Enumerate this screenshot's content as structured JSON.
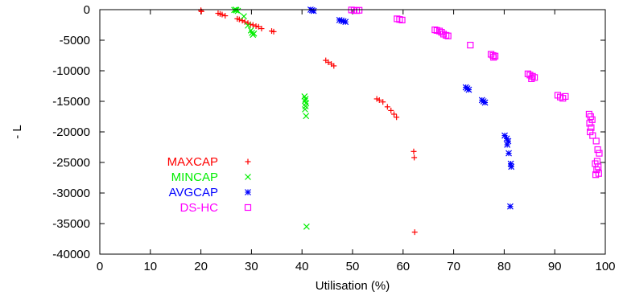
{
  "chart_data": {
    "type": "scatter",
    "title": "",
    "xlabel": "Utilisation (%)",
    "ylabel": "- L",
    "xlim": [
      0,
      100
    ],
    "ylim": [
      -40000,
      0
    ],
    "x_ticks": [
      "0",
      "10",
      "20",
      "30",
      "40",
      "50",
      "60",
      "70",
      "80",
      "90",
      "100"
    ],
    "y_ticks": [
      "0",
      "-5000",
      "-10000",
      "-15000",
      "-20000",
      "-25000",
      "-30000",
      "-35000",
      "-40000"
    ],
    "grid": false,
    "legend_position": "left",
    "series": [
      {
        "name": "MAXCAP",
        "color": "#ff0000",
        "marker": "plus",
        "points": [
          [
            20.0,
            -100
          ],
          [
            20.1,
            -300
          ],
          [
            23.4,
            -600
          ],
          [
            23.8,
            -700
          ],
          [
            24.2,
            -800
          ],
          [
            24.8,
            -1000
          ],
          [
            27.2,
            -1500
          ],
          [
            27.6,
            -1600
          ],
          [
            28.2,
            -1800
          ],
          [
            28.7,
            -2000
          ],
          [
            29.3,
            -2200
          ],
          [
            29.8,
            -2400
          ],
          [
            30.3,
            -2500
          ],
          [
            30.9,
            -2700
          ],
          [
            31.4,
            -2800
          ],
          [
            32.0,
            -3100
          ],
          [
            34.0,
            -3500
          ],
          [
            34.4,
            -3600
          ],
          [
            44.7,
            -8300
          ],
          [
            45.2,
            -8600
          ],
          [
            45.8,
            -8900
          ],
          [
            46.3,
            -9200
          ],
          [
            54.8,
            -14600
          ],
          [
            55.3,
            -14800
          ],
          [
            56.0,
            -15100
          ],
          [
            56.9,
            -15900
          ],
          [
            57.6,
            -16500
          ],
          [
            58.2,
            -17100
          ],
          [
            58.7,
            -17600
          ],
          [
            62.1,
            -23200
          ],
          [
            62.2,
            -24200
          ],
          [
            62.3,
            -36400
          ]
        ]
      },
      {
        "name": "MINCAP",
        "color": "#00ee00",
        "marker": "x",
        "points": [
          [
            26.6,
            -50
          ],
          [
            27.0,
            -100
          ],
          [
            27.3,
            -200
          ],
          [
            26.9,
            0
          ],
          [
            28.5,
            -1100
          ],
          [
            29.3,
            -2600
          ],
          [
            29.9,
            -3400
          ],
          [
            30.1,
            -3800
          ],
          [
            30.5,
            -3900
          ],
          [
            30.3,
            -4100
          ],
          [
            40.5,
            -14200
          ],
          [
            40.7,
            -14600
          ],
          [
            40.6,
            -14900
          ],
          [
            40.8,
            -15300
          ],
          [
            40.7,
            -15800
          ],
          [
            40.6,
            -16300
          ],
          [
            40.8,
            -17400
          ],
          [
            40.9,
            -35500
          ]
        ]
      },
      {
        "name": "AVGCAP",
        "color": "#0000ff",
        "marker": "star",
        "points": [
          [
            41.7,
            0
          ],
          [
            42.0,
            -100
          ],
          [
            42.3,
            -200
          ],
          [
            47.4,
            -1700
          ],
          [
            47.8,
            -1800
          ],
          [
            48.2,
            -1900
          ],
          [
            48.6,
            -2000
          ],
          [
            72.4,
            -12700
          ],
          [
            72.7,
            -12900
          ],
          [
            73.0,
            -13100
          ],
          [
            75.6,
            -14800
          ],
          [
            75.9,
            -15000
          ],
          [
            76.2,
            -15200
          ],
          [
            80.1,
            -20600
          ],
          [
            80.5,
            -21100
          ],
          [
            80.8,
            -21500
          ],
          [
            80.6,
            -22100
          ],
          [
            80.9,
            -23500
          ],
          [
            81.3,
            -25200
          ],
          [
            81.4,
            -25700
          ],
          [
            81.2,
            -32200
          ]
        ]
      },
      {
        "name": "DS-HC",
        "color": "#ff00ff",
        "marker": "square",
        "points": [
          [
            49.8,
            -50
          ],
          [
            50.3,
            -100
          ],
          [
            50.8,
            -150
          ],
          [
            51.3,
            -100
          ],
          [
            58.8,
            -1500
          ],
          [
            59.3,
            -1600
          ],
          [
            59.8,
            -1700
          ],
          [
            66.3,
            -3300
          ],
          [
            66.7,
            -3400
          ],
          [
            67.2,
            -3500
          ],
          [
            67.6,
            -3700
          ],
          [
            68.0,
            -4000
          ],
          [
            68.5,
            -4200
          ],
          [
            68.9,
            -4300
          ],
          [
            73.3,
            -5800
          ],
          [
            77.4,
            -7300
          ],
          [
            77.8,
            -7500
          ],
          [
            78.2,
            -7600
          ],
          [
            77.9,
            -7800
          ],
          [
            84.7,
            -10500
          ],
          [
            85.1,
            -10700
          ],
          [
            85.6,
            -10900
          ],
          [
            86.0,
            -11100
          ],
          [
            85.4,
            -11300
          ],
          [
            90.6,
            -14000
          ],
          [
            91.1,
            -14300
          ],
          [
            91.6,
            -14500
          ],
          [
            92.1,
            -14200
          ],
          [
            96.8,
            -17100
          ],
          [
            97.1,
            -17500
          ],
          [
            97.4,
            -18000
          ],
          [
            96.9,
            -18600
          ],
          [
            97.2,
            -19300
          ],
          [
            97.0,
            -20000
          ],
          [
            97.5,
            -20600
          ],
          [
            98.2,
            -21500
          ],
          [
            98.5,
            -22900
          ],
          [
            98.8,
            -23500
          ],
          [
            98.4,
            -24800
          ],
          [
            98.0,
            -25200
          ],
          [
            98.6,
            -25700
          ],
          [
            98.3,
            -26200
          ],
          [
            98.7,
            -26800
          ],
          [
            98.1,
            -27000
          ]
        ]
      }
    ]
  }
}
